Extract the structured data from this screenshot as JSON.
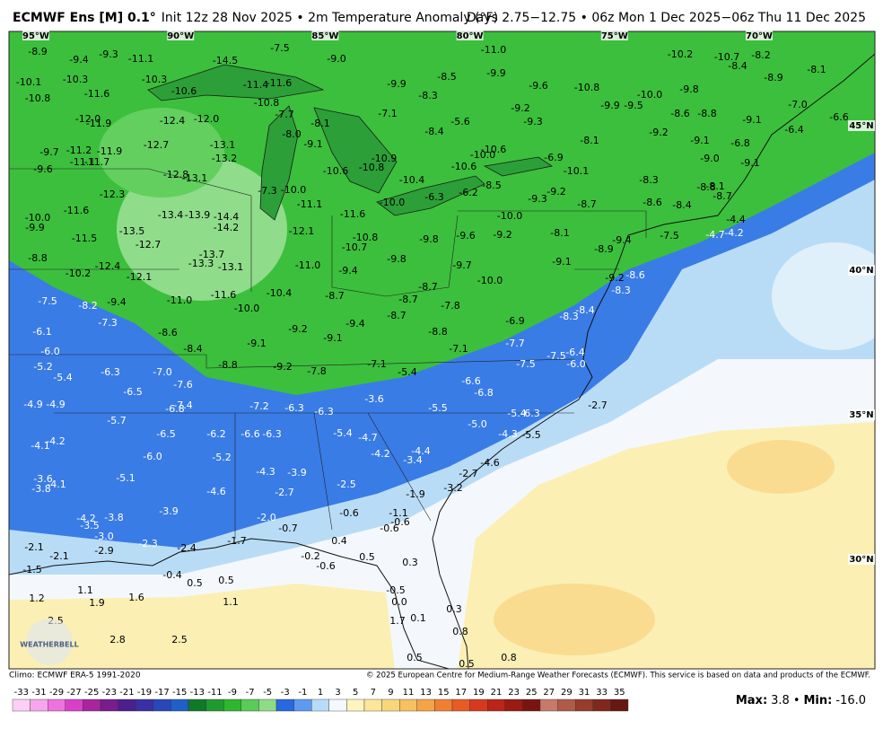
{
  "header": {
    "model": "ECMWF Ens [M] 0.1°",
    "title": "Init 12z 28 Nov 2025 • 2m Temperature Anomaly (°F)",
    "period": "Days 2.75−12.75 • 06z Mon 1 Dec 2025−06z Thu 11 Dec 2025"
  },
  "map": {
    "lon_labels": [
      "95°W",
      "90°W",
      "85°W",
      "80°W",
      "75°W",
      "70°W"
    ],
    "lat_labels": [
      "45°N",
      "40°N",
      "35°N",
      "30°N"
    ],
    "anomaly_labels": [
      "-8.9",
      "-9.4",
      "-9.3",
      "-11.1",
      "-7.5",
      "-9.0",
      "-11.0",
      "-10.2",
      "-10.7",
      "-8.2",
      "-8.4",
      "-8.1",
      "-10.1",
      "-10.3",
      "-10.3",
      "-14.5",
      "-8.5",
      "-9.9",
      "-8.9",
      "-10.8",
      "-11.6",
      "-10.6",
      "-11.4",
      "-11.6",
      "-9.9",
      "-8.3",
      "-9.6",
      "-10.8",
      "-10.0",
      "-9.8",
      "-9.9",
      "-9.5",
      "-7.0",
      "-10.8",
      "-7.7",
      "-8.1",
      "-7.1",
      "-9.2",
      "-8.6",
      "-8.8",
      "-9.1",
      "-6.6",
      "-6.4",
      "-12.0",
      "-11.9",
      "-12.4",
      "-12.0",
      "-8.0",
      "-5.6",
      "-9.3",
      "-6.8",
      "-8.4",
      "-8.1",
      "-9.2",
      "-9.1",
      "-9.1",
      "-9.7",
      "-11.2",
      "-11.9",
      "-12.7",
      "-13.1",
      "-10.6",
      "-10.0",
      "-11.1",
      "-11.7",
      "-13.2",
      "-10.9",
      "-6.9",
      "-9.0",
      "-9.6",
      "-10.6",
      "-10.8",
      "-10.6",
      "-10.1",
      "-9.1",
      "-12.8",
      "-13.1",
      "-10.4",
      "-8.5",
      "-8.3",
      "-8.8",
      "-8.1",
      "-8.7",
      "-7.3",
      "-10.0",
      "-12.3",
      "-6.3",
      "-6.2",
      "-9.3",
      "-9.2",
      "-10.0",
      "-11.1",
      "-8.7",
      "-8.6",
      "-8.4",
      "-11.6",
      "-13.4",
      "-13.9",
      "-14.4",
      "-11.6",
      "-10.0",
      "-10.0",
      "-9.9",
      "-13.5",
      "-14.2",
      "-12.1",
      "-4.4",
      "-9.6",
      "-9.2",
      "-8.1",
      "-9.8",
      "-9.4",
      "-7.5",
      "-4.7",
      "-4.2",
      "-11.5",
      "-12.7",
      "-10.8",
      "-10.7",
      "-8.9",
      "-8.8",
      "-13.7",
      "-13.3",
      "-13.1",
      "-11.0",
      "-9.8",
      "-12.4",
      "-9.7",
      "-9.1",
      "-10.2",
      "-12.1",
      "-9.4",
      "-8.6",
      "-9.2",
      "-10.0",
      "-8.7",
      "-11.0",
      "-11.6",
      "-10.4",
      "-8.7",
      "-8.7",
      "-7.8",
      "-8.3",
      "-7.5",
      "-8.2",
      "-9.4",
      "-10.0",
      "-8.4",
      "-8.3",
      "-6.9",
      "-7.3",
      "-9.2",
      "-9.4",
      "-8.7",
      "-6.1",
      "-8.6",
      "-9.1",
      "-8.8",
      "-9.1",
      "-7.7",
      "-6.0",
      "-8.4",
      "-7.1",
      "-7.5",
      "-6.4",
      "-5.2",
      "-8.8",
      "-9.2",
      "-7.8",
      "-7.1",
      "-5.4",
      "-7.5",
      "-6.0",
      "-5.4",
      "-6.3",
      "-7.0",
      "-7.6",
      "-6.6",
      "-6.5",
      "-6.8",
      "-3.6",
      "-6.8",
      "-7.4",
      "-7.2",
      "-6.3",
      "-6.3",
      "-5.5",
      "-2.7",
      "-4.9",
      "-4.9",
      "-5.4",
      "-6.3",
      "-5.7",
      "-5.0",
      "-6.5",
      "-6.2",
      "-6.6",
      "-6.3",
      "-5.4",
      "-4.7",
      "-4.3",
      "-5.5",
      "-4.1",
      "-4.2",
      "-4.2",
      "-4.4",
      "-3.4",
      "-4.6",
      "-6.0",
      "-5.2",
      "-4.3",
      "-3.9",
      "-2.7",
      "-3.6",
      "-5.1",
      "-3.8",
      "-4.1",
      "-2.5",
      "-3.2",
      "-4.6",
      "-2.7",
      "-1.9",
      "-3.9",
      "-4.2",
      "-3.8",
      "-3.5",
      "-2.0",
      "-0.6",
      "-1.1",
      "-0.7",
      "-0.6",
      "-0.6",
      "-3.0",
      "-2.3",
      "-2.9",
      "-2.1",
      "-2.4",
      "-1.7",
      "0.4",
      "-2.1",
      "-0.2",
      "0.5",
      "0.3",
      "-0.6",
      "-1.5",
      "-0.4",
      "0.5",
      "0.5",
      "1.1",
      "-0.5",
      "1.2",
      "1.9",
      "1.6",
      "1.1",
      "0.0",
      "0.3",
      "0.1",
      "1.7",
      "2.5",
      "0.8",
      "2.8",
      "2.5",
      "0.5",
      "0.8",
      "0.5"
    ],
    "logo": "WEATHERBELL"
  },
  "footer": {
    "climo": "Climo: ECMWF ERA-5 1991-2020",
    "copyright": "© 2025 European Centre for Medium-Range Weather Forecasts (ECMWF). This service is based on data and products of the ECMWF.",
    "max_label": "Max:",
    "max": "3.8",
    "separator": "•",
    "min_label": "Min:",
    "min": "-16.0"
  },
  "colorbar": {
    "ticks": [
      -33,
      -31,
      -29,
      -27,
      -25,
      -23,
      -21,
      -19,
      -17,
      -15,
      -13,
      -11,
      -9,
      -7,
      -5,
      -3,
      -1,
      1,
      3,
      5,
      7,
      9,
      11,
      13,
      15,
      17,
      19,
      21,
      23,
      25,
      27,
      29,
      31,
      33,
      35
    ],
    "colors": [
      "#fbd0f4",
      "#f6a6ec",
      "#ee73df",
      "#d940c9",
      "#a8259e",
      "#7a1b8e",
      "#4c1f8c",
      "#3b2fa5",
      "#2a46b8",
      "#1f5fc8",
      "#0d7a2a",
      "#1f9a2f",
      "#2eb62e",
      "#5acb56",
      "#8ddc88",
      "#2868e0",
      "#5d9af0",
      "#b8dcf8",
      "#f6f9fc",
      "#fdf5c0",
      "#fbe79a",
      "#f9d67a",
      "#f7c060",
      "#f4a347",
      "#f07f34",
      "#e85a26",
      "#d63a1e",
      "#bb2418",
      "#9a1a14",
      "#7a1410",
      "#c87a6a",
      "#b05a4a",
      "#983c30",
      "#80281e",
      "#681812"
    ]
  }
}
